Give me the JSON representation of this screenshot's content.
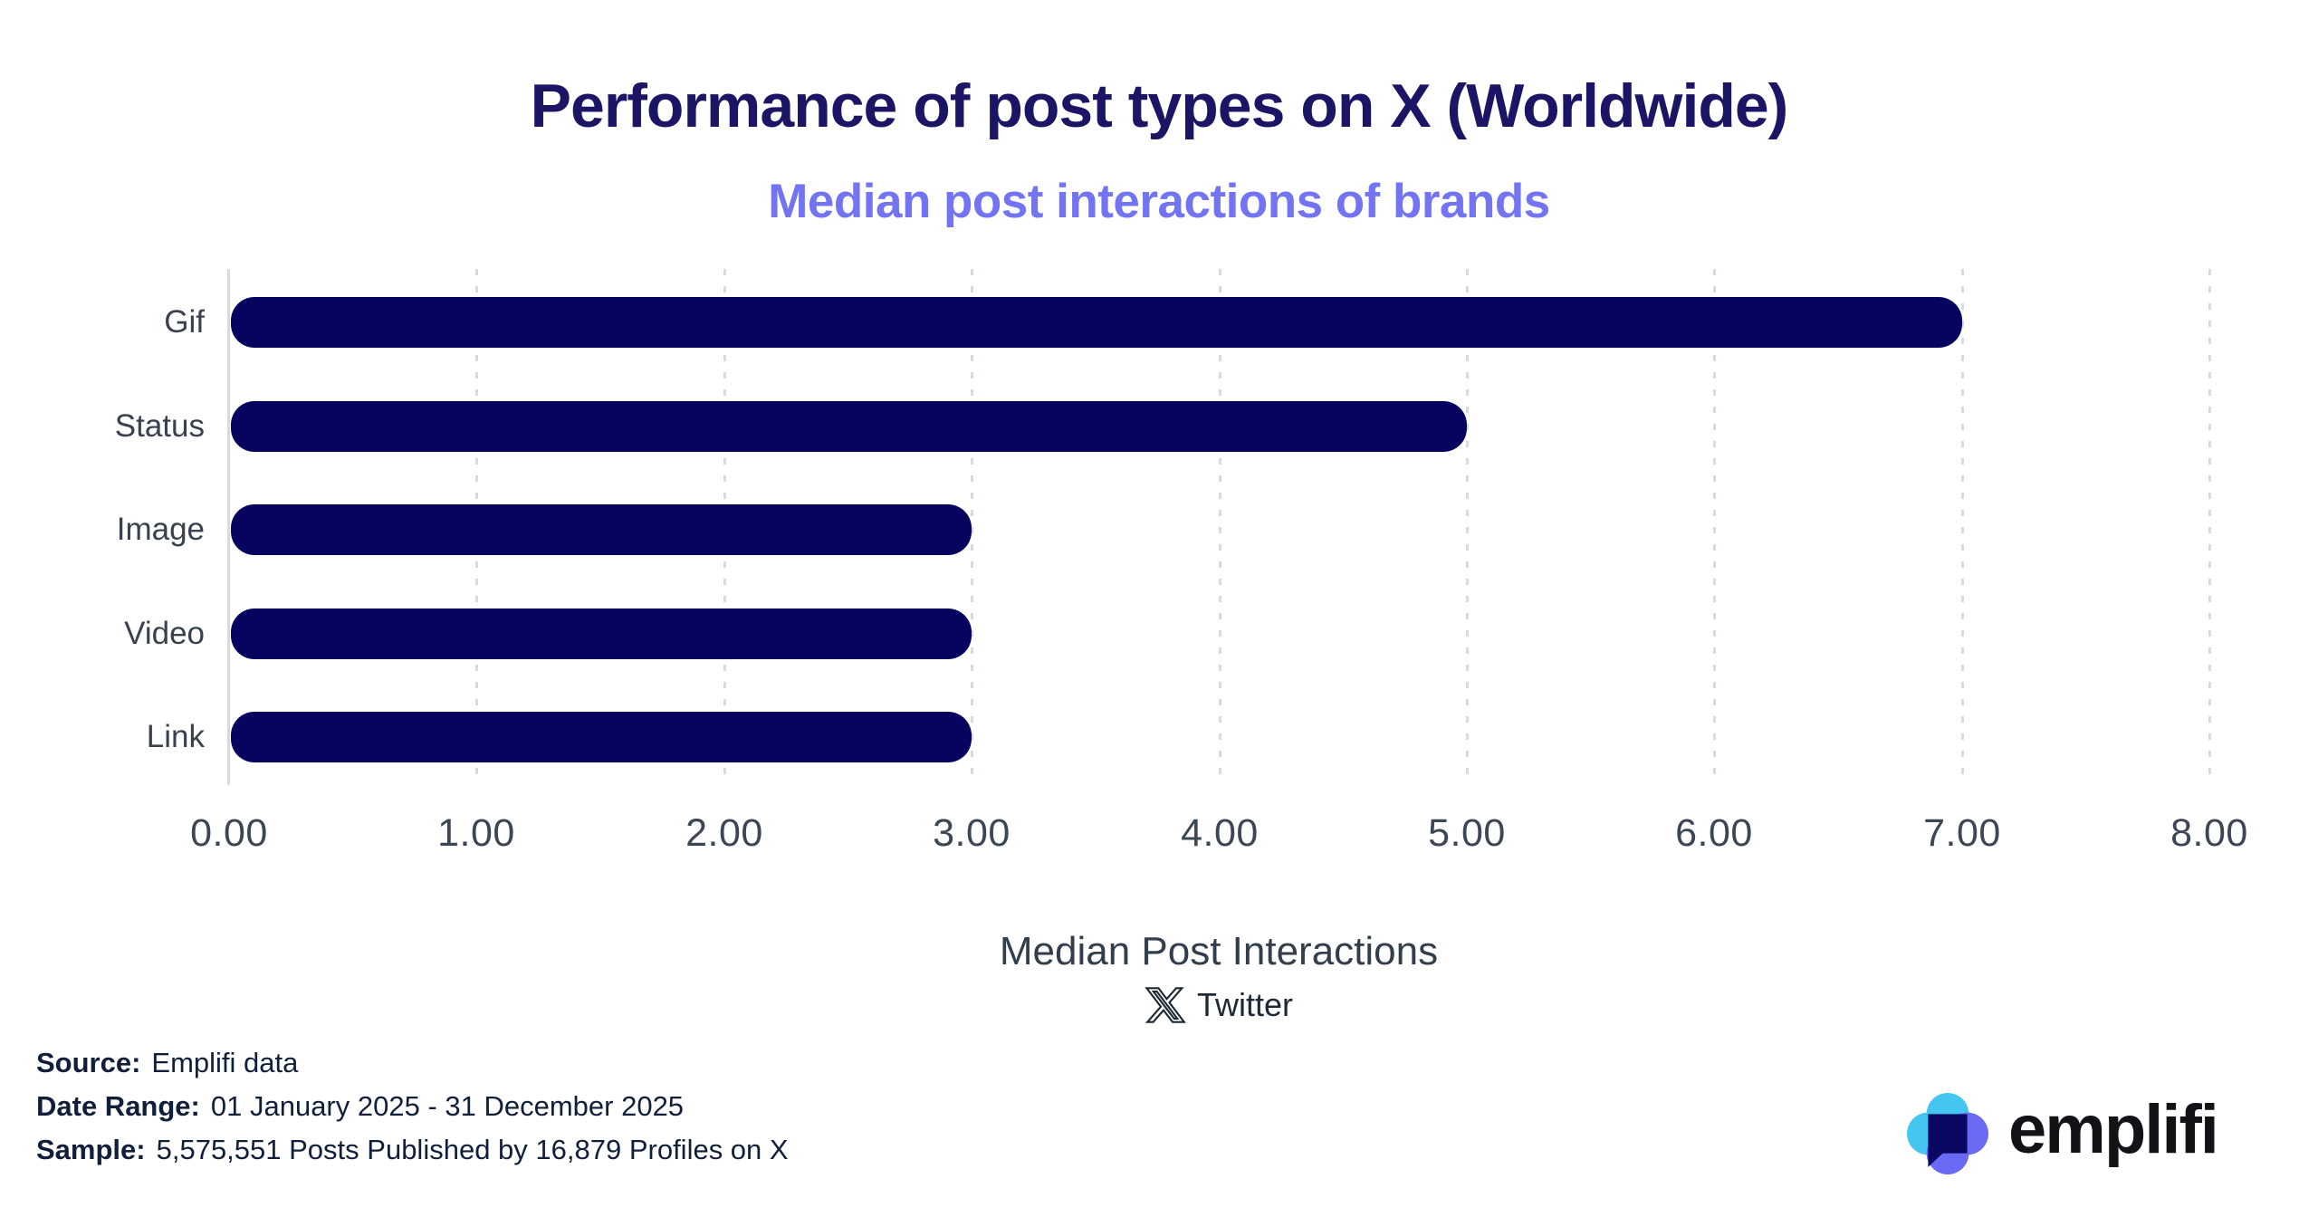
{
  "header": {
    "title": "Performance of post types on X (Worldwide)",
    "subtitle": "Median post interactions of brands"
  },
  "chart_data": {
    "type": "bar",
    "orientation": "horizontal",
    "title": "Performance of post types on X (Worldwide)",
    "subtitle": "Median post interactions of brands",
    "categories": [
      "Gif",
      "Status",
      "Image",
      "Video",
      "Link"
    ],
    "values": [
      7.0,
      5.0,
      3.0,
      3.0,
      3.0
    ],
    "xlabel": "Median Post Interactions",
    "ylabel": "",
    "xlim": [
      0,
      8
    ],
    "xtick_interval": 1.0,
    "xticks": [
      "0.00",
      "1.00",
      "2.00",
      "3.00",
      "4.00",
      "5.00",
      "6.00",
      "7.00",
      "8.00"
    ],
    "grid": "vertical dashed gridlines at each 1.00, y-axis solid line at 0",
    "legend_position": "none",
    "bar_color": "#06045f"
  },
  "platform": {
    "icon": "x-logo-icon",
    "label": "Twitter"
  },
  "footer": {
    "source_label": "Source:",
    "source_value": "Emplifi data",
    "date_label": "Date Range:",
    "date_value": "01 January 2025 - 31 December 2025",
    "sample_label": "Sample:",
    "sample_value": "5,575,551 Posts Published by 16,879 Profiles on X"
  },
  "branding": {
    "logo_icon": "emplifi-logo-icon",
    "logo_text": "emplifi"
  },
  "colors": {
    "title": "#1c1566",
    "subtitle": "#7274f2",
    "bar": "#06045f",
    "gridline": "#d7dade",
    "axis_line": "#d8dade",
    "tick_label": "#3d4654",
    "category_label": "#39414f",
    "axis_title": "#333e4c",
    "platform_text": "#1d2936",
    "footer_text": "#121f3a",
    "logo_cyan": "#45c6f1",
    "logo_periwinkle": "#6a6af5",
    "logo_navy": "#0a0862",
    "logo_text_color": "#121316"
  }
}
